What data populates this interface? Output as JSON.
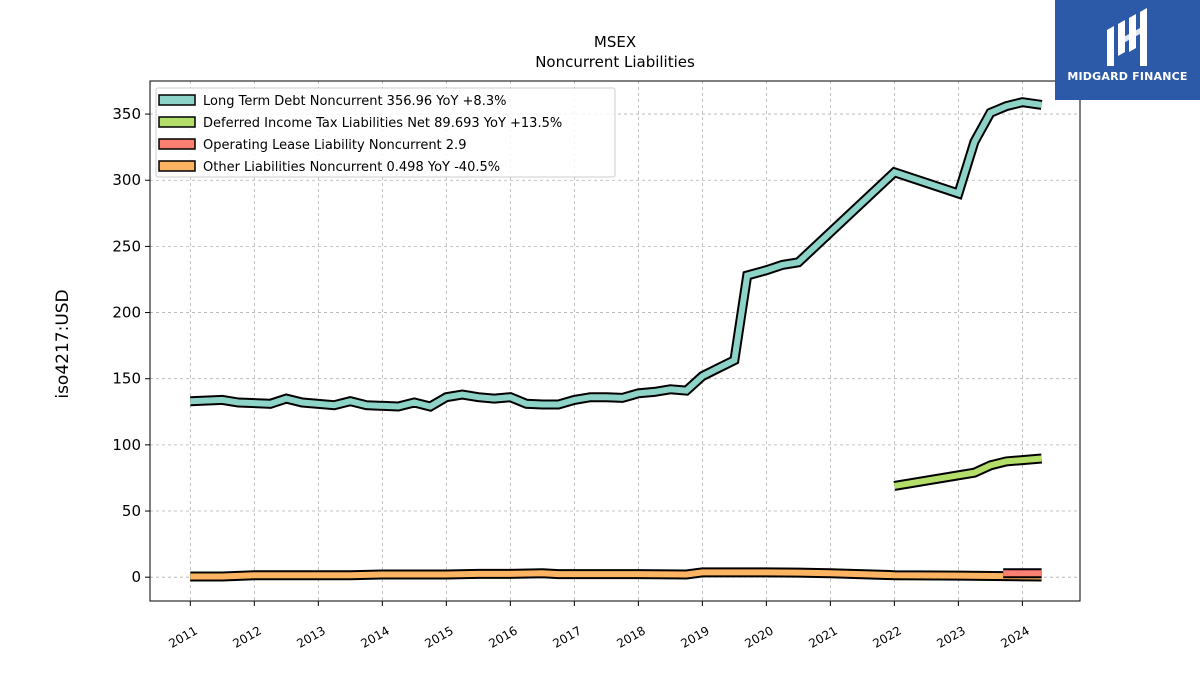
{
  "brand": {
    "name": "MIDGARD FINANCE",
    "logo_bg": "#2d5aa8",
    "logo_icon": "mf-monogram-icon"
  },
  "chart_data": {
    "type": "line",
    "title": "MSEX",
    "subtitle": "Noncurrent  Liabilities",
    "ylabel": "iso4217:USD",
    "xlabel": "",
    "ylim": [
      -18,
      375
    ],
    "xlim": [
      2010.37,
      2024.9
    ],
    "yticks": [
      0,
      50,
      100,
      150,
      200,
      250,
      300,
      350
    ],
    "xticks": [
      2011,
      2012,
      2013,
      2014,
      2015,
      2016,
      2017,
      2018,
      2019,
      2020,
      2021,
      2022,
      2023,
      2024
    ],
    "grid": true,
    "legend_position": "top-left",
    "series": [
      {
        "name": "Long Term Debt Noncurrent",
        "legend": "Long Term Debt Noncurrent  356.96 YoY +8.3%",
        "color": "#8dd3c7",
        "x": [
          2011.0,
          2011.5,
          2011.75,
          2012.25,
          2012.5,
          2012.75,
          2013.25,
          2013.5,
          2013.75,
          2014.25,
          2014.5,
          2014.75,
          2015.0,
          2015.25,
          2015.5,
          2015.75,
          2016.0,
          2016.25,
          2016.5,
          2016.75,
          2017.0,
          2017.25,
          2017.5,
          2017.75,
          2018.0,
          2018.25,
          2018.5,
          2018.75,
          2019.0,
          2019.25,
          2019.5,
          2019.7,
          2020.0,
          2020.25,
          2020.5,
          2022.0,
          2023.0,
          2023.25,
          2023.5,
          2023.75,
          2024.0,
          2024.3
        ],
        "y": [
          133,
          134,
          132,
          131,
          135,
          132,
          130,
          133,
          130,
          129,
          132,
          129,
          136,
          138,
          136,
          135,
          136,
          131,
          130.5,
          130.5,
          134,
          136,
          136,
          135.5,
          139,
          140,
          142,
          141,
          152,
          158,
          164,
          228,
          232,
          236,
          238,
          306,
          290,
          329,
          351,
          356,
          359,
          356.96
        ]
      },
      {
        "name": "Deferred Income Tax Liabilities Net",
        "legend": "Deferred Income Tax Liabilities Net  89.693 YoY +13.5%",
        "color": "#b3de69",
        "x": [
          2022.0,
          2023.0,
          2023.25,
          2023.5,
          2023.75,
          2024.0,
          2024.3
        ],
        "y": [
          69,
          77,
          79,
          84.5,
          87.5,
          88.5,
          89.693
        ]
      },
      {
        "name": "Operating Lease Liability Noncurrent",
        "legend": "Operating Lease Liability Noncurrent  2.9",
        "color": "#fb8072",
        "x": [
          2023.7,
          2024.3
        ],
        "y": [
          2.9,
          2.9
        ]
      },
      {
        "name": "Other Liabilities Noncurrent",
        "legend": "Other Liabilities Noncurrent  0.498 YoY -40.5%",
        "color": "#fdb462",
        "x": [
          2011.0,
          2011.5,
          2012.0,
          2013.5,
          2014.0,
          2015.0,
          2015.5,
          2016.0,
          2016.5,
          2016.75,
          2018.0,
          2018.75,
          2019.0,
          2019.5,
          2020.0,
          2020.5,
          2021.0,
          2022.0,
          2023.0,
          2024.3
        ],
        "y": [
          0.5,
          0.5,
          1.5,
          1.5,
          2.0,
          2.0,
          2.5,
          2.5,
          3.0,
          2.3,
          2.3,
          2.0,
          3.6,
          3.6,
          3.6,
          3.5,
          3.0,
          1.5,
          1.2,
          0.498
        ]
      }
    ]
  }
}
